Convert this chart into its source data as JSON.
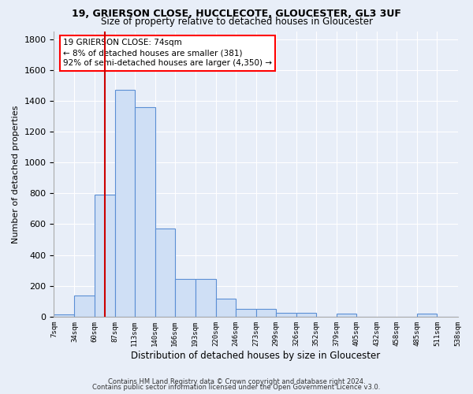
{
  "title1": "19, GRIERSON CLOSE, HUCCLECOTE, GLOUCESTER, GL3 3UF",
  "title2": "Size of property relative to detached houses in Gloucester",
  "xlabel": "Distribution of detached houses by size in Gloucester",
  "ylabel": "Number of detached properties",
  "bin_edges": [
    7,
    34,
    60,
    87,
    113,
    140,
    166,
    193,
    220,
    246,
    273,
    299,
    326,
    352,
    379,
    405,
    432,
    458,
    485,
    511,
    538
  ],
  "bar_heights": [
    15,
    135,
    790,
    1470,
    1360,
    570,
    245,
    245,
    115,
    50,
    50,
    25,
    25,
    0,
    20,
    0,
    0,
    0,
    20,
    0
  ],
  "bar_color": "#cfdff5",
  "bar_edge_color": "#5b8fd4",
  "background_color": "#e8eef8",
  "grid_color": "#ffffff",
  "red_line_x": 74,
  "ylim": [
    0,
    1850
  ],
  "yticks": [
    0,
    200,
    400,
    600,
    800,
    1000,
    1200,
    1400,
    1600,
    1800
  ],
  "annotation_box_text": "19 GRIERSON CLOSE: 74sqm\n← 8% of detached houses are smaller (381)\n92% of semi-detached houses are larger (4,350) →",
  "footnote1": "Contains HM Land Registry data © Crown copyright and database right 2024.",
  "footnote2": "Contains public sector information licensed under the Open Government Licence v3.0."
}
